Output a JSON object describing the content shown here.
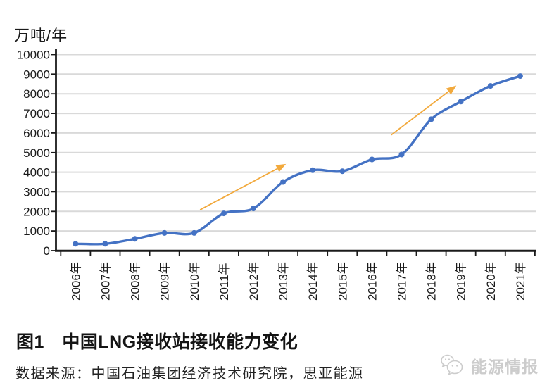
{
  "chart_data": {
    "type": "line",
    "title": "图1　中国LNG接收站接收能力变化",
    "unit_label": "万吨/年",
    "categories": [
      "2006年",
      "2007年",
      "2008年",
      "2009年",
      "2010年",
      "2011年",
      "2012年",
      "2013年",
      "2014年",
      "2015年",
      "2016年",
      "2017年",
      "2018年",
      "2019年",
      "2020年",
      "2021年"
    ],
    "series": [
      {
        "name": "中国LNG接收站接收能力",
        "values": [
          350,
          350,
          600,
          900,
          900,
          1900,
          2150,
          3500,
          4100,
          4050,
          4650,
          4900,
          6700,
          7600,
          8400,
          8900
        ],
        "color": "#4472C4",
        "smoothed": true,
        "markers": true
      }
    ],
    "ylim": [
      0,
      10000
    ],
    "ytick_step": 1000,
    "grid": "horizontal",
    "gridline_color": "#D9D9D9",
    "axis_color": "#1a1a1a",
    "legend": "none",
    "x_labels_rotation": -90,
    "annotations": [
      {
        "type": "trend-arrow",
        "color": "#F2A93C",
        "from": {
          "category_index": 4.7,
          "value": 2080
        },
        "to": {
          "category_index": 7.6,
          "value": 4420
        }
      },
      {
        "type": "trend-arrow",
        "color": "#F2A93C",
        "from": {
          "category_index": 11.15,
          "value": 5900
        },
        "to": {
          "category_index": 13.35,
          "value": 8420
        }
      }
    ]
  },
  "caption": {
    "title": "图1　中国LNG接收站接收能力变化",
    "source": "数据来源：中国石油集团经济技术研究院，思亚能源"
  },
  "watermark": {
    "label": "能源情报",
    "icon": "wechat-speech-bubbles-icon",
    "color": "#cccccc"
  }
}
